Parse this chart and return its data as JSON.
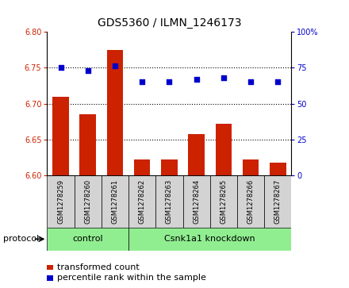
{
  "title": "GDS5360 / ILMN_1246173",
  "samples": [
    "GSM1278259",
    "GSM1278260",
    "GSM1278261",
    "GSM1278262",
    "GSM1278263",
    "GSM1278264",
    "GSM1278265",
    "GSM1278266",
    "GSM1278267"
  ],
  "bar_values": [
    6.71,
    6.685,
    6.775,
    6.622,
    6.622,
    6.658,
    6.672,
    6.622,
    6.618
  ],
  "percentile_values": [
    75,
    73,
    76,
    65,
    65,
    67,
    68,
    65,
    65
  ],
  "bar_color": "#cc2200",
  "dot_color": "#0000cc",
  "ylim_left": [
    6.6,
    6.8
  ],
  "ylim_right": [
    0,
    100
  ],
  "yticks_left": [
    6.6,
    6.65,
    6.7,
    6.75,
    6.8
  ],
  "yticks_right": [
    0,
    25,
    50,
    75,
    100
  ],
  "ytick_labels_right": [
    "0",
    "25",
    "50",
    "75",
    "100%"
  ],
  "grid_values": [
    6.65,
    6.7,
    6.75
  ],
  "control_count": 3,
  "protocol_label": "protocol",
  "group1_label": "control",
  "group2_label": "Csnk1a1 knockdown",
  "group_color": "#90ee90",
  "legend_bar_label": "transformed count",
  "legend_dot_label": "percentile rank within the sample",
  "bar_width": 0.6,
  "title_fontsize": 10,
  "tick_fontsize": 7,
  "label_fontsize": 8,
  "legend_fontsize": 8,
  "sample_fontsize": 6,
  "group_fontsize": 8,
  "background_color": "#ffffff",
  "tick_area_color": "#d3d3d3"
}
